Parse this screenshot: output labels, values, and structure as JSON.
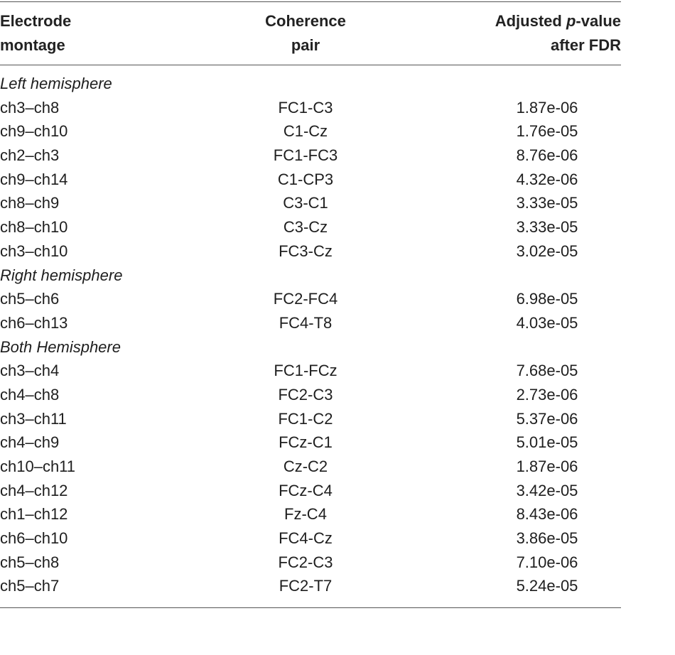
{
  "table": {
    "header": {
      "col1_line1": "Electrode",
      "col1_line2": "montage",
      "col2_line1": "Coherence",
      "col2_line2": "pair",
      "col3_line1_pre": "Adjusted ",
      "col3_line1_italic": "p",
      "col3_line1_post": "-value",
      "col3_line2": "after FDR"
    },
    "sections": [
      {
        "label": "Left hemisphere",
        "rows": [
          {
            "montage": "ch3–ch8",
            "pair": "FC1-C3",
            "p": "1.87e-06"
          },
          {
            "montage": "ch9–ch10",
            "pair": "C1-Cz",
            "p": "1.76e-05"
          },
          {
            "montage": "ch2–ch3",
            "pair": "FC1-FC3",
            "p": "8.76e-06"
          },
          {
            "montage": "ch9–ch14",
            "pair": "C1-CP3",
            "p": "4.32e-06"
          },
          {
            "montage": "ch8–ch9",
            "pair": "C3-C1",
            "p": "3.33e-05"
          },
          {
            "montage": "ch8–ch10",
            "pair": "C3-Cz",
            "p": "3.33e-05"
          },
          {
            "montage": "ch3–ch10",
            "pair": "FC3-Cz",
            "p": "3.02e-05"
          }
        ]
      },
      {
        "label": "Right hemisphere",
        "rows": [
          {
            "montage": "ch5–ch6",
            "pair": "FC2-FC4",
            "p": "6.98e-05"
          },
          {
            "montage": "ch6–ch13",
            "pair": "FC4-T8",
            "p": "4.03e-05"
          }
        ]
      },
      {
        "label": "Both Hemisphere",
        "rows": [
          {
            "montage": "ch3–ch4",
            "pair": "FC1-FCz",
            "p": "7.68e-05"
          },
          {
            "montage": "ch4–ch8",
            "pair": "FC2-C3",
            "p": "2.73e-06"
          },
          {
            "montage": "ch3–ch11",
            "pair": "FC1-C2",
            "p": "5.37e-06"
          },
          {
            "montage": "ch4–ch9",
            "pair": "FCz-C1",
            "p": "5.01e-05"
          },
          {
            "montage": "ch10–ch11",
            "pair": "Cz-C2",
            "p": "1.87e-06"
          },
          {
            "montage": "ch4–ch12",
            "pair": "FCz-C4",
            "p": "3.42e-05"
          },
          {
            "montage": "ch1–ch12",
            "pair": "Fz-C4",
            "p": "8.43e-06"
          },
          {
            "montage": "ch6–ch10",
            "pair": "FC4-Cz",
            "p": "3.86e-05"
          },
          {
            "montage": "ch5–ch8",
            "pair": "FC2-C3",
            "p": "7.10e-06"
          },
          {
            "montage": "ch5–ch7",
            "pair": "FC2-T7",
            "p": "5.24e-05"
          }
        ]
      }
    ]
  }
}
